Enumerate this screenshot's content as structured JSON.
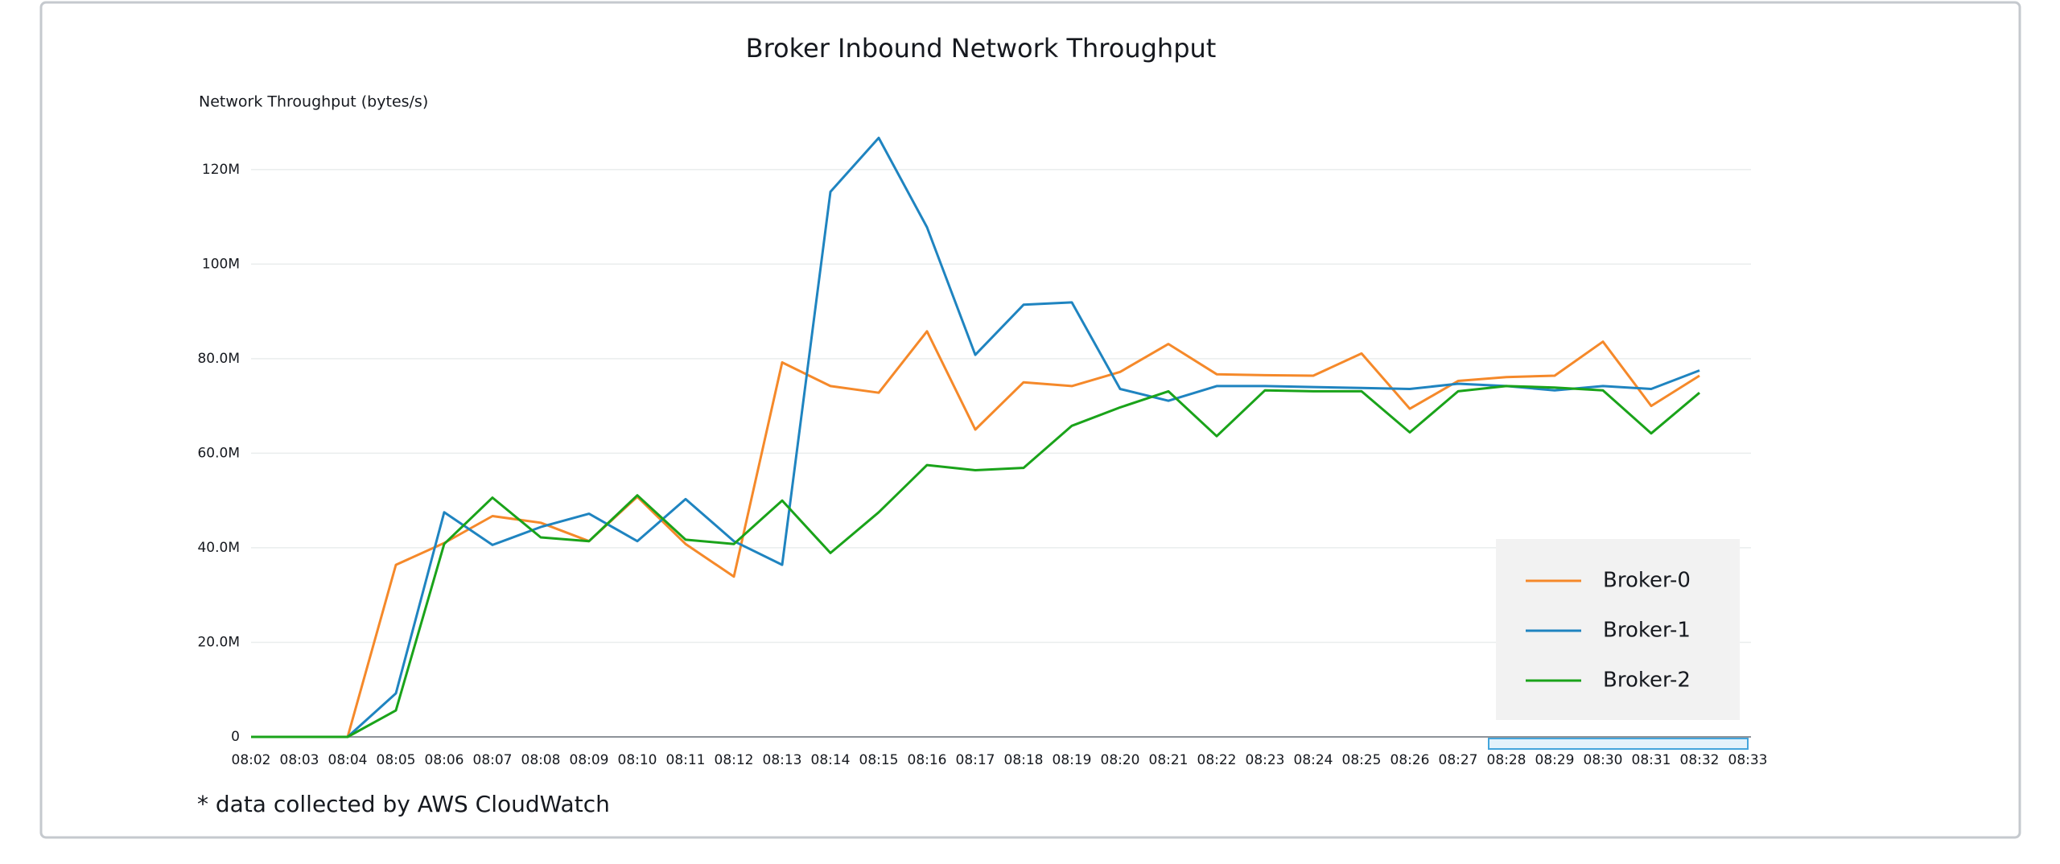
{
  "chart_data": {
    "type": "line",
    "title": "Broker Inbound Network Throughput",
    "y_label": "Network Throughput (bytes/s)",
    "footnote": "* data collected by AWS CloudWatch",
    "categories": [
      "08:02",
      "08:03",
      "08:04",
      "08:05",
      "08:06",
      "08:07",
      "08:08",
      "08:09",
      "08:10",
      "08:11",
      "08:12",
      "08:13",
      "08:14",
      "08:15",
      "08:16",
      "08:17",
      "08:18",
      "08:19",
      "08:20",
      "08:21",
      "08:22",
      "08:23",
      "08:24",
      "08:25",
      "08:26",
      "08:27",
      "08:28",
      "08:29",
      "08:30",
      "08:31",
      "08:32",
      "08:33"
    ],
    "series": [
      {
        "name": "Broker-0",
        "color": "#f5892a",
        "values": [
          0,
          0,
          0,
          36400000,
          41000000,
          46700000,
          45300000,
          41400000,
          50800000,
          40800000,
          33900000,
          79200000,
          74200000,
          72800000,
          85800000,
          65000000,
          75000000,
          74200000,
          77200000,
          83100000,
          76700000,
          76500000,
          76400000,
          81100000,
          69400000,
          75300000,
          76100000,
          76400000,
          83600000,
          70000000,
          76400000,
          null
        ]
      },
      {
        "name": "Broker-1",
        "color": "#1f84c0",
        "values": [
          0,
          0,
          0,
          9200000,
          47500000,
          40600000,
          44400000,
          47200000,
          41400000,
          50300000,
          41400000,
          36400000,
          115300000,
          126700000,
          107800000,
          80800000,
          91400000,
          91900000,
          73600000,
          71100000,
          74200000,
          74200000,
          74000000,
          73800000,
          73600000,
          74700000,
          74200000,
          73300000,
          74200000,
          73600000,
          77500000,
          null
        ]
      },
      {
        "name": "Broker-2",
        "color": "#1aa31a",
        "values": [
          0,
          0,
          0,
          5600000,
          40800000,
          50600000,
          42200000,
          41400000,
          51100000,
          41700000,
          40800000,
          50000000,
          38900000,
          47500000,
          57500000,
          56400000,
          56900000,
          65800000,
          69700000,
          73100000,
          63600000,
          73300000,
          73100000,
          73100000,
          64400000,
          73100000,
          74200000,
          73900000,
          73300000,
          64200000,
          72800000,
          null
        ]
      }
    ],
    "ylim": [
      0,
      130000000
    ],
    "yticks": [
      0,
      {
        "value": 20000000,
        "label": "20.0M"
      },
      {
        "value": 40000000,
        "label": "40.0M"
      },
      {
        "value": 60000000,
        "label": "60.0M"
      },
      {
        "value": 80000000,
        "label": "80.0M"
      },
      {
        "value": 100000000,
        "label": "100M"
      },
      {
        "value": 120000000,
        "label": "120M"
      }
    ],
    "grid": true,
    "legend": "lower right"
  }
}
